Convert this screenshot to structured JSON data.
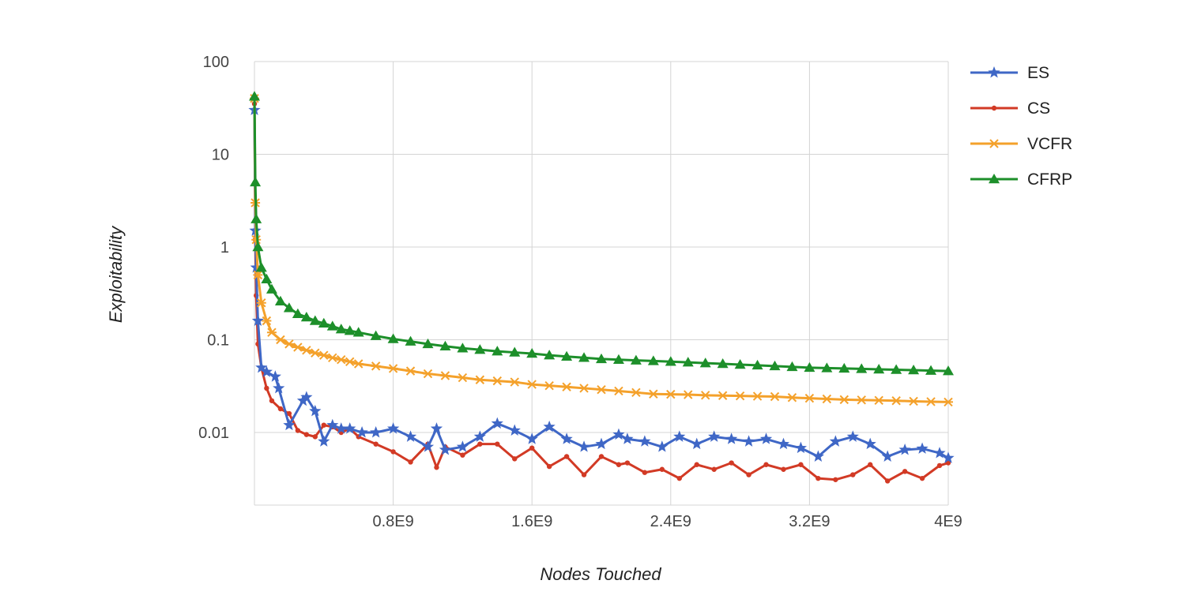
{
  "chart_data": {
    "type": "line",
    "xlabel": "Nodes Touched",
    "ylabel": "Exploitability",
    "xlim": [
      0,
      4000000000
    ],
    "ylim": [
      0.002,
      100
    ],
    "yscale": "log",
    "grid": true,
    "legend_position": "right",
    "x_ticks": [
      {
        "value": 800000000,
        "label": "0.8E9"
      },
      {
        "value": 1600000000,
        "label": "1.6E9"
      },
      {
        "value": 2400000000,
        "label": "2.4E9"
      },
      {
        "value": 3200000000,
        "label": "3.2E9"
      },
      {
        "value": 4000000000,
        "label": "4E9"
      }
    ],
    "y_ticks": [
      {
        "value": 100,
        "label": "100"
      },
      {
        "value": 10,
        "label": "10"
      },
      {
        "value": 1,
        "label": "1"
      },
      {
        "value": 0.1,
        "label": "0.1"
      },
      {
        "value": 0.01,
        "label": "0.01"
      }
    ],
    "series": [
      {
        "name": "ES",
        "color": "#3f67c6",
        "marker": "star",
        "x": [
          0,
          5000000,
          10000000,
          20000000,
          40000000,
          70000000,
          120000000,
          140000000,
          200000000,
          280000000,
          300000000,
          350000000,
          400000000,
          450000000,
          500000000,
          550000000,
          620000000,
          700000000,
          800000000,
          900000000,
          1000000000,
          1050000000,
          1100000000,
          1200000000,
          1300000000,
          1400000000,
          1500000000,
          1600000000,
          1700000000,
          1800000000,
          1900000000,
          2000000000,
          2100000000,
          2150000000,
          2250000000,
          2350000000,
          2450000000,
          2550000000,
          2650000000,
          2750000000,
          2850000000,
          2950000000,
          3050000000,
          3150000000,
          3250000000,
          3350000000,
          3450000000,
          3550000000,
          3650000000,
          3750000000,
          3850000000,
          3950000000,
          4000000000
        ],
        "y": [
          30,
          1.5,
          0.6,
          0.16,
          0.05,
          0.045,
          0.04,
          0.03,
          0.012,
          0.022,
          0.024,
          0.017,
          0.008,
          0.012,
          0.011,
          0.011,
          0.01,
          0.01,
          0.011,
          0.009,
          0.007,
          0.011,
          0.0065,
          0.007,
          0.009,
          0.0125,
          0.0105,
          0.0085,
          0.0115,
          0.0085,
          0.007,
          0.0075,
          0.0095,
          0.0085,
          0.008,
          0.007,
          0.009,
          0.0075,
          0.009,
          0.0085,
          0.008,
          0.0085,
          0.0075,
          0.0068,
          0.0055,
          0.008,
          0.009,
          0.0075,
          0.0055,
          0.0065,
          0.0067,
          0.006,
          0.0053
        ]
      },
      {
        "name": "CS",
        "color": "#d23a25",
        "marker": "circle",
        "x": [
          0,
          5000000,
          10000000,
          20000000,
          40000000,
          70000000,
          100000000,
          150000000,
          200000000,
          250000000,
          300000000,
          350000000,
          400000000,
          450000000,
          500000000,
          550000000,
          600000000,
          700000000,
          800000000,
          900000000,
          1000000000,
          1050000000,
          1100000000,
          1200000000,
          1300000000,
          1400000000,
          1500000000,
          1600000000,
          1700000000,
          1800000000,
          1900000000,
          2000000000,
          2100000000,
          2150000000,
          2250000000,
          2350000000,
          2450000000,
          2550000000,
          2650000000,
          2750000000,
          2850000000,
          2950000000,
          3050000000,
          3150000000,
          3250000000,
          3350000000,
          3450000000,
          3550000000,
          3650000000,
          3750000000,
          3850000000,
          3950000000,
          4000000000
        ],
        "y": [
          35,
          1.2,
          0.3,
          0.09,
          0.05,
          0.03,
          0.022,
          0.018,
          0.016,
          0.0105,
          0.0095,
          0.009,
          0.012,
          0.0115,
          0.01,
          0.011,
          0.009,
          0.0075,
          0.0062,
          0.0048,
          0.0075,
          0.0042,
          0.007,
          0.0057,
          0.0075,
          0.0075,
          0.0052,
          0.0068,
          0.0043,
          0.0055,
          0.0035,
          0.0055,
          0.0045,
          0.0047,
          0.0037,
          0.004,
          0.0032,
          0.0045,
          0.004,
          0.0047,
          0.0035,
          0.0045,
          0.004,
          0.0045,
          0.0032,
          0.0031,
          0.0035,
          0.0045,
          0.003,
          0.0038,
          0.0032,
          0.0044,
          0.0047
        ]
      },
      {
        "name": "VCFR",
        "color": "#f4a12b",
        "marker": "x",
        "x": [
          0,
          5000000,
          10000000,
          20000000,
          40000000,
          70000000,
          100000000,
          150000000,
          200000000,
          250000000,
          300000000,
          350000000,
          400000000,
          450000000,
          500000000,
          550000000,
          600000000,
          700000000,
          800000000,
          900000000,
          1000000000,
          1100000000,
          1200000000,
          1300000000,
          1400000000,
          1500000000,
          1600000000,
          1700000000,
          1800000000,
          1900000000,
          2000000000,
          2100000000,
          2200000000,
          2300000000,
          2400000000,
          2500000000,
          2600000000,
          2700000000,
          2800000000,
          2900000000,
          3000000000,
          3100000000,
          3200000000,
          3300000000,
          3400000000,
          3500000000,
          3600000000,
          3700000000,
          3800000000,
          3900000000,
          4000000000
        ],
        "y": [
          40,
          3,
          1.2,
          0.5,
          0.25,
          0.16,
          0.12,
          0.1,
          0.09,
          0.083,
          0.077,
          0.072,
          0.068,
          0.064,
          0.061,
          0.058,
          0.055,
          0.052,
          0.049,
          0.046,
          0.043,
          0.041,
          0.039,
          0.037,
          0.036,
          0.035,
          0.033,
          0.032,
          0.031,
          0.03,
          0.029,
          0.028,
          0.027,
          0.026,
          0.0258,
          0.0256,
          0.0252,
          0.025,
          0.0248,
          0.0246,
          0.0244,
          0.0238,
          0.0234,
          0.023,
          0.0226,
          0.0224,
          0.0222,
          0.022,
          0.0217,
          0.0215,
          0.0213
        ]
      },
      {
        "name": "CFRP",
        "color": "#1d8f2a",
        "marker": "triangle",
        "x": [
          0,
          5000000,
          10000000,
          20000000,
          40000000,
          70000000,
          100000000,
          150000000,
          200000000,
          250000000,
          300000000,
          350000000,
          400000000,
          450000000,
          500000000,
          550000000,
          600000000,
          700000000,
          800000000,
          900000000,
          1000000000,
          1100000000,
          1200000000,
          1300000000,
          1400000000,
          1500000000,
          1600000000,
          1700000000,
          1800000000,
          1900000000,
          2000000000,
          2100000000,
          2200000000,
          2300000000,
          2400000000,
          2500000000,
          2600000000,
          2700000000,
          2800000000,
          2900000000,
          3000000000,
          3100000000,
          3200000000,
          3300000000,
          3400000000,
          3500000000,
          3600000000,
          3700000000,
          3800000000,
          3900000000,
          4000000000
        ],
        "y": [
          42,
          5,
          2,
          1,
          0.6,
          0.45,
          0.35,
          0.26,
          0.22,
          0.19,
          0.175,
          0.16,
          0.15,
          0.14,
          0.13,
          0.125,
          0.12,
          0.11,
          0.102,
          0.096,
          0.09,
          0.085,
          0.081,
          0.078,
          0.075,
          0.073,
          0.071,
          0.068,
          0.066,
          0.064,
          0.062,
          0.061,
          0.06,
          0.059,
          0.058,
          0.057,
          0.056,
          0.055,
          0.054,
          0.053,
          0.052,
          0.051,
          0.05,
          0.0495,
          0.049,
          0.0485,
          0.048,
          0.0475,
          0.047,
          0.0465,
          0.046
        ]
      }
    ]
  }
}
